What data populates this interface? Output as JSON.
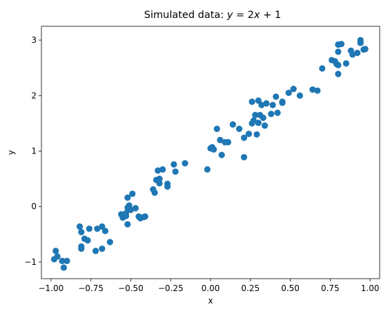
{
  "chart_data": {
    "type": "scatter",
    "title": "Simulated data: y = 2x + 1",
    "title_parts": {
      "prefix": "Simulated data: ",
      "y": "y",
      "eq": " = 2",
      "x": "x",
      "suffix": " + 1"
    },
    "xlabel": "x",
    "ylabel": "y",
    "xlim": [
      -1.06,
      1.06
    ],
    "ylim": [
      -1.3,
      3.25
    ],
    "xticks": [
      -1.0,
      -0.75,
      -0.5,
      -0.25,
      0.0,
      0.25,
      0.5,
      0.75,
      1.0
    ],
    "xtick_labels": [
      "−1.00",
      "−0.75",
      "−0.50",
      "−0.25",
      "0.00",
      "0.25",
      "0.50",
      "0.75",
      "1.00"
    ],
    "yticks": [
      -1,
      0,
      1,
      2,
      3
    ],
    "ytick_labels": [
      "−1",
      "0",
      "1",
      "2",
      "3"
    ],
    "grid": false,
    "legend": false,
    "series": [
      {
        "color": "#1f77b4",
        "points": [
          [
            -0.98,
            -0.95
          ],
          [
            -0.97,
            -0.8
          ],
          [
            -0.96,
            -0.9
          ],
          [
            -0.93,
            -0.98
          ],
          [
            -0.92,
            -1.1
          ],
          [
            -0.9,
            -0.98
          ],
          [
            -0.82,
            -0.36
          ],
          [
            -0.81,
            -0.46
          ],
          [
            -0.81,
            -0.72
          ],
          [
            -0.81,
            -0.76
          ],
          [
            -0.79,
            -0.58
          ],
          [
            -0.77,
            -0.61
          ],
          [
            -0.76,
            -0.4
          ],
          [
            -0.72,
            -0.8
          ],
          [
            -0.71,
            -0.4
          ],
          [
            -0.68,
            -0.36
          ],
          [
            -0.68,
            -0.76
          ],
          [
            -0.66,
            -0.44
          ],
          [
            -0.63,
            -0.64
          ],
          [
            -0.56,
            -0.14
          ],
          [
            -0.55,
            -0.2
          ],
          [
            -0.53,
            -0.17
          ],
          [
            -0.53,
            -0.12
          ],
          [
            -0.52,
            0.16
          ],
          [
            -0.52,
            -0.02
          ],
          [
            -0.52,
            -0.32
          ],
          [
            -0.51,
            0.02
          ],
          [
            -0.5,
            -0.06
          ],
          [
            -0.49,
            0.23
          ],
          [
            -0.47,
            -0.03
          ],
          [
            -0.45,
            -0.18
          ],
          [
            -0.44,
            -0.21
          ],
          [
            -0.42,
            -0.19
          ],
          [
            -0.41,
            -0.18
          ],
          [
            -0.36,
            0.31
          ],
          [
            -0.35,
            0.25
          ],
          [
            -0.34,
            0.48
          ],
          [
            -0.33,
            0.65
          ],
          [
            -0.32,
            0.5
          ],
          [
            -0.32,
            0.42
          ],
          [
            -0.3,
            0.67
          ],
          [
            -0.27,
            0.36
          ],
          [
            -0.27,
            0.41
          ],
          [
            -0.23,
            0.76
          ],
          [
            -0.22,
            0.63
          ],
          [
            -0.16,
            0.78
          ],
          [
            -0.02,
            0.67
          ],
          [
            0.0,
            1.05
          ],
          [
            0.01,
            1.07
          ],
          [
            0.02,
            1.03
          ],
          [
            0.04,
            1.4
          ],
          [
            0.06,
            1.2
          ],
          [
            0.07,
            0.93
          ],
          [
            0.09,
            1.16
          ],
          [
            0.11,
            1.16
          ],
          [
            0.14,
            1.48
          ],
          [
            0.18,
            1.4
          ],
          [
            0.21,
            0.89
          ],
          [
            0.21,
            1.24
          ],
          [
            0.24,
            1.31
          ],
          [
            0.26,
            1.89
          ],
          [
            0.26,
            1.5
          ],
          [
            0.27,
            1.55
          ],
          [
            0.28,
            1.65
          ],
          [
            0.29,
            1.3
          ],
          [
            0.3,
            1.91
          ],
          [
            0.3,
            1.51
          ],
          [
            0.31,
            1.65
          ],
          [
            0.32,
            1.83
          ],
          [
            0.33,
            1.6
          ],
          [
            0.34,
            1.46
          ],
          [
            0.35,
            1.86
          ],
          [
            0.38,
            1.67
          ],
          [
            0.39,
            1.83
          ],
          [
            0.41,
            1.98
          ],
          [
            0.42,
            1.69
          ],
          [
            0.45,
            1.87
          ],
          [
            0.45,
            1.89
          ],
          [
            0.49,
            2.05
          ],
          [
            0.52,
            2.12
          ],
          [
            0.56,
            2.0
          ],
          [
            0.64,
            2.11
          ],
          [
            0.67,
            2.09
          ],
          [
            0.7,
            2.49
          ],
          [
            0.76,
            2.64
          ],
          [
            0.78,
            2.62
          ],
          [
            0.79,
            2.57
          ],
          [
            0.8,
            2.55
          ],
          [
            0.8,
            2.79
          ],
          [
            0.8,
            2.92
          ],
          [
            0.8,
            2.39
          ],
          [
            0.82,
            2.93
          ],
          [
            0.85,
            2.58
          ],
          [
            0.88,
            2.81
          ],
          [
            0.89,
            2.74
          ],
          [
            0.92,
            2.77
          ],
          [
            0.94,
            3.0
          ],
          [
            0.94,
            2.95
          ],
          [
            0.96,
            2.83
          ],
          [
            0.97,
            2.84
          ]
        ]
      }
    ]
  }
}
